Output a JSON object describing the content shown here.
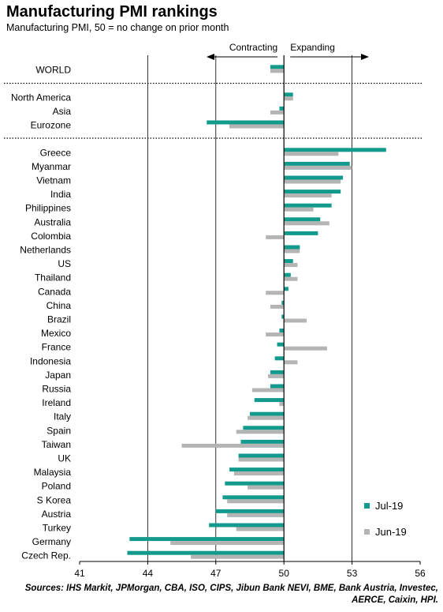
{
  "chart_data": {
    "type": "bar",
    "orientation": "horizontal",
    "title": "Manufacturing PMI rankings",
    "subtitle": "Manufacturing PMI, 50 = no change on prior month",
    "baseline": 50,
    "xlim": [
      41,
      56
    ],
    "xticks": [
      41,
      44,
      47,
      50,
      53,
      56
    ],
    "direction_labels": {
      "left": "Contracting",
      "right": "Expanding"
    },
    "categories": [
      "WORLD",
      "North America",
      "Asia",
      "Eurozone",
      "Greece",
      "Myanmar",
      "Vietnam",
      "India",
      "Philippines",
      "Australia",
      "Colombia",
      "Netherlands",
      "US",
      "Thailand",
      "Canada",
      "China",
      "Brazil",
      "Mexico",
      "France",
      "Indonesia",
      "Japan",
      "Russia",
      "Ireland",
      "Italy",
      "Spain",
      "Taiwan",
      "UK",
      "Malaysia",
      "Poland",
      "S Korea",
      "Austria",
      "Turkey",
      "Germany",
      "Czech Rep."
    ],
    "groups": [
      [
        0
      ],
      [
        1,
        2,
        3
      ],
      [
        4,
        5,
        6,
        7,
        8,
        9,
        10,
        11,
        12,
        13,
        14,
        15,
        16,
        17,
        18,
        19,
        20,
        21,
        22,
        23,
        24,
        25,
        26,
        27,
        28,
        29,
        30,
        31,
        32,
        33
      ]
    ],
    "series": [
      {
        "name": "Jul-19",
        "color": "#129a8c",
        "values": [
          49.4,
          50.4,
          49.8,
          46.6,
          54.5,
          52.9,
          52.6,
          52.5,
          52.1,
          51.6,
          51.5,
          50.7,
          50.4,
          50.3,
          50.2,
          49.9,
          49.9,
          49.8,
          49.7,
          49.6,
          49.4,
          49.4,
          48.7,
          48.5,
          48.2,
          48.1,
          48.0,
          47.6,
          47.4,
          47.3,
          47.0,
          46.7,
          43.2,
          43.1
        ]
      },
      {
        "name": "Jun-19",
        "color": "#b4b4b4",
        "values": [
          49.4,
          50.4,
          49.4,
          47.6,
          52.4,
          53.0,
          52.5,
          52.1,
          51.3,
          52.0,
          49.2,
          50.7,
          50.6,
          50.6,
          49.2,
          49.4,
          51.0,
          49.2,
          51.9,
          50.6,
          49.3,
          48.6,
          49.8,
          48.4,
          47.9,
          45.5,
          48.0,
          47.8,
          48.4,
          47.5,
          47.5,
          47.9,
          45.0,
          45.9
        ]
      }
    ],
    "legend_position": "bottom-right",
    "sources": "Sources: IHS Markit, JPMorgan, CBA, ISO, CIPS, Jibun Bank NEVI, BME, Bank Austria, Investec, AERCE, Caixin, HPI."
  }
}
